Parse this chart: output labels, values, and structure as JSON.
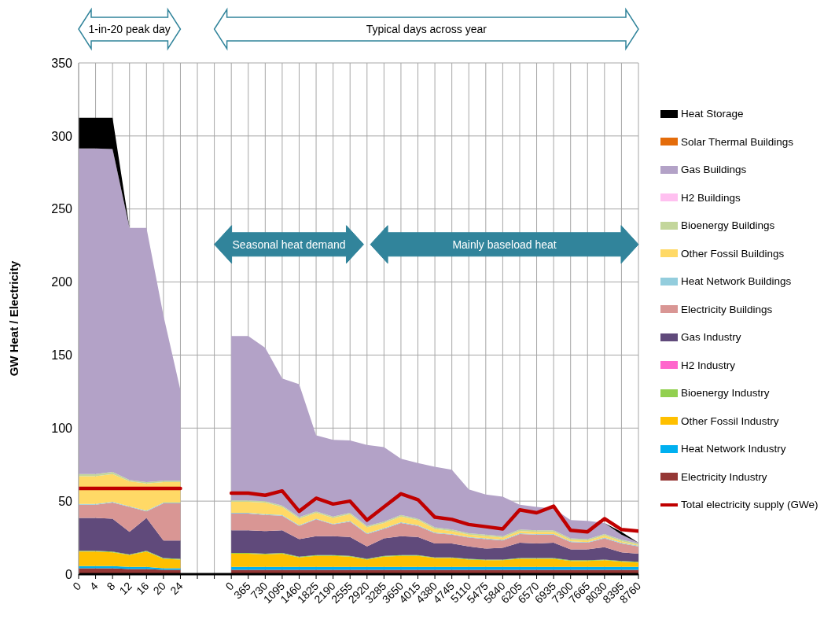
{
  "chart_data": {
    "type": "area",
    "stacked": true,
    "ylabel": "GW Heat / Electricity",
    "categories": [
      "0",
      "4",
      "8",
      "12",
      "16",
      "20",
      "24",
      null,
      null,
      "0",
      "365",
      "730",
      "1095",
      "1460",
      "1825",
      "2190",
      "2555",
      "2920",
      "3285",
      "3650",
      "4015",
      "4380",
      "4745",
      "5110",
      "5475",
      "5840",
      "6205",
      "6570",
      "6935",
      "7300",
      "7665",
      "8030",
      "8395",
      "8760"
    ],
    "series": [
      {
        "name": "Electricity Industry",
        "color": "#953735",
        "values": [
          4,
          4,
          4,
          3.5,
          3.5,
          3,
          3,
          null,
          null,
          3,
          3,
          3,
          3,
          3,
          3,
          3,
          3,
          3,
          3,
          3,
          3,
          3,
          3,
          3,
          3,
          3,
          3,
          3,
          3,
          3,
          3,
          3,
          3,
          3
        ]
      },
      {
        "name": "Heat Network Industry",
        "color": "#00b0f0",
        "values": [
          1.5,
          1.5,
          1.5,
          1.5,
          1.5,
          1,
          1,
          null,
          null,
          2,
          2,
          2,
          2,
          2,
          2,
          2,
          2,
          2,
          2,
          2,
          2,
          2,
          2,
          2,
          2,
          2,
          2,
          2,
          2,
          2,
          2,
          2,
          2,
          2
        ]
      },
      {
        "name": "Other Fossil Industry",
        "color": "#ffc000",
        "values": [
          10,
          10,
          9.5,
          8,
          10.5,
          6.5,
          6,
          null,
          null,
          9,
          9,
          8.5,
          9,
          6.5,
          7.5,
          7.5,
          7,
          5,
          7,
          7.5,
          7.5,
          6,
          6,
          5,
          4.5,
          4.5,
          5.5,
          5.5,
          5.5,
          4,
          4,
          4.5,
          3.5,
          3
        ]
      },
      {
        "name": "Bioenergy Industry",
        "color": "#92d050",
        "values": [
          0.5,
          0.5,
          0.5,
          0.5,
          0.5,
          0.5,
          0.5,
          null,
          null,
          0.5,
          0.5,
          0.5,
          0.5,
          0.5,
          0.5,
          0.5,
          0.5,
          0.5,
          0.5,
          0.5,
          0.5,
          0.5,
          0.5,
          0.5,
          0.5,
          0.5,
          0.5,
          0.5,
          0.5,
          0.5,
          0.5,
          0.5,
          0.5,
          0.5
        ]
      },
      {
        "name": "H2 Industry",
        "color": "#ff66cc",
        "values": [
          null,
          null,
          null,
          null,
          null,
          null,
          null,
          null,
          null,
          null,
          null,
          null,
          null,
          null,
          null,
          null,
          null,
          null,
          null,
          null,
          null,
          null,
          null,
          null,
          null,
          null,
          null,
          null,
          null,
          null,
          null,
          null,
          null,
          null
        ]
      },
      {
        "name": "Gas Industry",
        "color": "#604a7b",
        "values": [
          22.5,
          22.5,
          22.5,
          15.5,
          22.5,
          12,
          12.5,
          null,
          null,
          15.5,
          15.5,
          15.5,
          15.5,
          12,
          13,
          13,
          13,
          8.5,
          12,
          13,
          12.5,
          9.5,
          9.5,
          8.5,
          7.5,
          8,
          10.5,
          10,
          10.5,
          7.5,
          7.5,
          8.5,
          6,
          5.5
        ]
      },
      {
        "name": "Electricity Buildings",
        "color": "#d99694",
        "values": [
          9,
          9,
          11,
          17,
          4.5,
          25.5,
          25.5,
          null,
          null,
          11.5,
          11.5,
          11,
          10,
          9,
          11.5,
          8,
          10.5,
          8.5,
          6.5,
          9,
          7.5,
          7,
          6,
          6,
          6.5,
          5,
          6,
          6,
          5.5,
          5,
          4.5,
          6,
          6,
          5
        ]
      },
      {
        "name": "Heat Network Buildings",
        "color": "#93cddd",
        "values": [
          0.5,
          0.5,
          0.5,
          0.5,
          0.5,
          0.5,
          0.5,
          null,
          null,
          0.5,
          0.5,
          0.5,
          0.5,
          0.5,
          0.5,
          0.5,
          0.5,
          0.5,
          0.5,
          0.5,
          0.5,
          0.5,
          0.5,
          0.5,
          0.5,
          0.5,
          0.5,
          0.5,
          0.5,
          0.5,
          0.5,
          0.5,
          0.5,
          0.5
        ]
      },
      {
        "name": "Other Fossil Buildings",
        "color": "#ffd966",
        "values": [
          19,
          19,
          19,
          17,
          18.5,
          14,
          14,
          null,
          null,
          7.5,
          7.5,
          8,
          5.5,
          4.5,
          4,
          4,
          4.5,
          4,
          3.5,
          4,
          3.5,
          2.5,
          2,
          1.5,
          1.5,
          1.5,
          1.5,
          1.5,
          1.5,
          1,
          1,
          1.5,
          1,
          0.5
        ]
      },
      {
        "name": "Bioenergy Buildings",
        "color": "#c3d69b",
        "values": [
          1.5,
          1.5,
          1.5,
          1,
          1,
          1,
          1,
          null,
          null,
          1,
          1,
          1,
          1,
          1,
          1,
          1,
          1,
          1,
          1,
          1,
          1,
          1,
          1,
          1,
          1,
          1,
          1,
          1,
          1,
          1,
          1,
          1,
          1,
          1
        ]
      },
      {
        "name": "H2 Buildings",
        "color": "#ffc0f0",
        "values": [
          null,
          null,
          null,
          null,
          null,
          null,
          null,
          null,
          null,
          null,
          null,
          null,
          null,
          null,
          null,
          null,
          null,
          null,
          null,
          null,
          null,
          null,
          null,
          null,
          null,
          null,
          null,
          null,
          null,
          null,
          null,
          null,
          null,
          null
        ]
      },
      {
        "name": "Gas Buildings",
        "color": "#b3a2c7",
        "values": [
          223,
          223,
          221,
          172.5,
          174,
          113,
          62,
          null,
          null,
          112.5,
          112.5,
          105,
          87,
          91,
          52,
          52.5,
          49.5,
          55.5,
          51,
          38.5,
          38,
          41.5,
          41,
          30,
          27.5,
          27,
          17,
          16,
          15,
          12.5,
          12.5,
          7.5,
          3.5,
          0.5
        ]
      },
      {
        "name": "Solar Thermal Buildings",
        "color": "#e46c0a",
        "values": [
          null,
          null,
          null,
          null,
          null,
          null,
          null,
          null,
          null,
          null,
          null,
          null,
          null,
          null,
          null,
          null,
          null,
          null,
          null,
          null,
          null,
          null,
          null,
          null,
          null,
          null,
          null,
          null,
          null,
          null,
          null,
          null,
          null,
          null
        ]
      },
      {
        "name": "Heat Storage",
        "color": "#000000",
        "values": [
          21,
          21,
          21.5,
          0,
          null,
          null,
          null,
          null,
          null,
          null,
          null,
          null,
          null,
          null,
          null,
          null,
          null,
          null,
          null,
          null,
          null,
          null,
          null,
          null,
          null,
          null,
          null,
          null,
          null,
          null,
          null,
          0,
          2,
          0
        ]
      },
      {
        "name": "Total electricity supply (GWe)",
        "type": "line",
        "color": "#c00000",
        "values": [
          58.7,
          58.7,
          58.7,
          58.7,
          58.7,
          58.7,
          58.7,
          null,
          null,
          55.5,
          55.5,
          54,
          57,
          43,
          52,
          48,
          50,
          37,
          46,
          55,
          51,
          39,
          37.5,
          34,
          32.5,
          31,
          44,
          42,
          46.5,
          30,
          29,
          38,
          30.5,
          29.5
        ]
      }
    ],
    "ylim": [
      0,
      350
    ],
    "yticks": [
      0,
      50,
      100,
      150,
      200,
      250,
      300,
      350
    ],
    "grid": true,
    "legend": "right",
    "marker": "none",
    "line_style": "solid",
    "annotations": [
      "1-in-20 peak day",
      "Typical days across year",
      "Seasonal heat demand",
      "Mainly baseload heat"
    ]
  }
}
